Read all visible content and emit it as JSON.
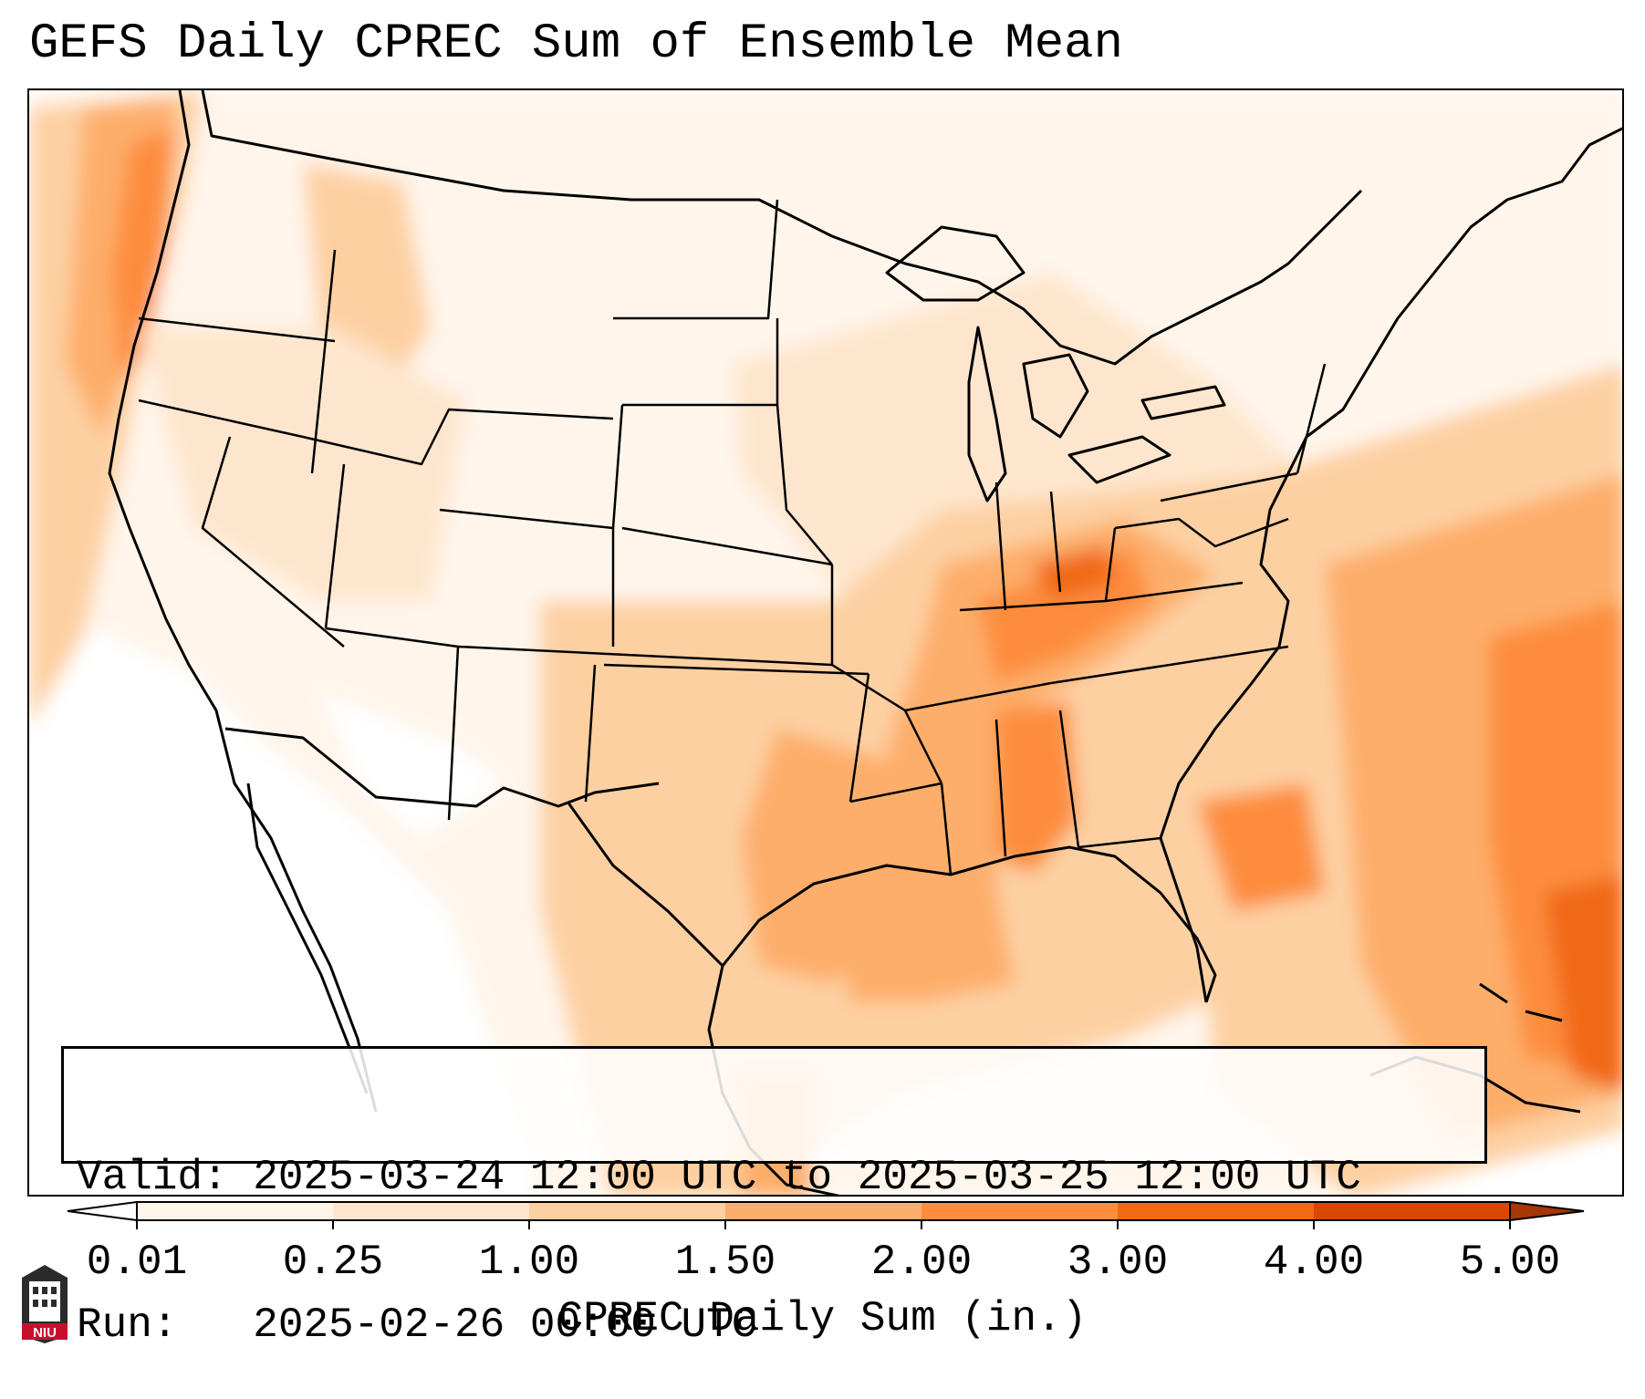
{
  "title": "GEFS Daily CPREC Sum of Ensemble Mean",
  "info": {
    "valid_line": "Valid: 2025-03-24 12:00 UTC to 2025-03-25 12:00 UTC",
    "run_line": "Run:   2025-02-26 00:00 UTC"
  },
  "colorbar": {
    "label": "CPREC Daily Sum (in.)",
    "ticks": [
      "0.01",
      "0.25",
      "1.00",
      "1.50",
      "2.00",
      "3.00",
      "4.00",
      "5.00"
    ],
    "colors": [
      "#fff5eb",
      "#fee6ce",
      "#fdd0a2",
      "#fdae6b",
      "#fd8d3c",
      "#f16913",
      "#d94801",
      "#a63603"
    ],
    "under_color": "#ffffff",
    "over_color": "#a63603",
    "extend": "both"
  },
  "logo": {
    "text": "NIU",
    "icon": "university-building-logo-icon"
  },
  "map": {
    "projection": "lambert-conformal",
    "region": "Contiguous United States",
    "boundaries": [
      "coastlines",
      "state-borders",
      "country-borders"
    ]
  }
}
